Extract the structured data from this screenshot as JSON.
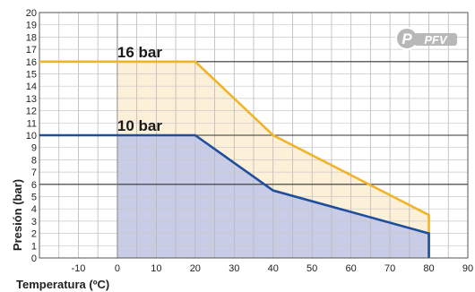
{
  "chart_data": {
    "type": "area",
    "xlabel": "Temperatura (ºC)",
    "ylabel": "Presión (bar)",
    "xlim": [
      -20,
      90
    ],
    "ylim": [
      0,
      20
    ],
    "x_ticks": [
      -10,
      0,
      10,
      20,
      30,
      40,
      50,
      60,
      70,
      80,
      90
    ],
    "y_ticks": [
      0,
      1,
      2,
      3,
      4,
      5,
      6,
      7,
      8,
      9,
      10,
      11,
      12,
      13,
      14,
      15,
      16,
      17,
      18,
      19,
      20
    ],
    "reference_lines_y": [
      6,
      10,
      16
    ],
    "grid": true,
    "series": [
      {
        "name": "16 bar",
        "color": "#f0b429",
        "fill": "#fdf0d8",
        "points": [
          [
            -20,
            16
          ],
          [
            20,
            16
          ],
          [
            40,
            10
          ],
          [
            80,
            3.5
          ],
          [
            80,
            0
          ]
        ]
      },
      {
        "name": "10 bar",
        "color": "#1f4e9c",
        "fill": "#c9cce6",
        "points": [
          [
            -20,
            10
          ],
          [
            20,
            10
          ],
          [
            40,
            5.5
          ],
          [
            80,
            2
          ],
          [
            80,
            0
          ]
        ]
      }
    ],
    "shaded_region_x": [
      0,
      80
    ]
  },
  "logo": {
    "letter": "P",
    "text": "PFV",
    "icon": "pfv-logo-icon"
  }
}
